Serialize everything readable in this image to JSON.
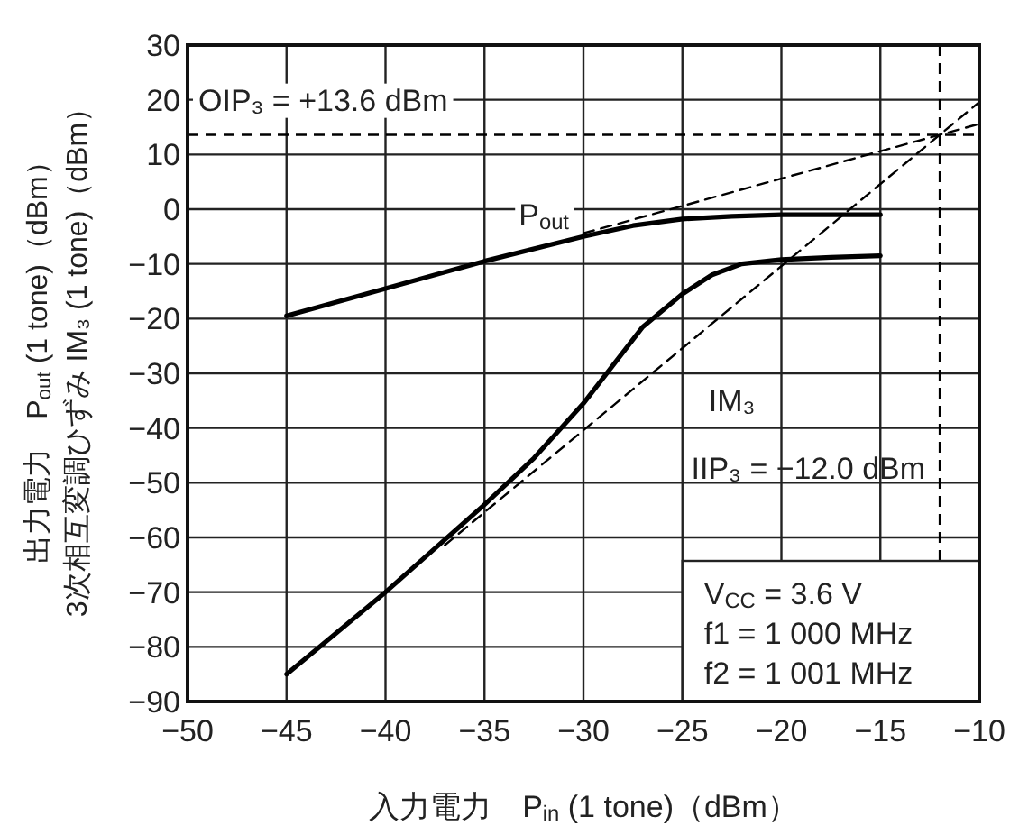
{
  "chart_data": {
    "type": "line",
    "xlabel": "入力電力　P$_{in}$ (1 tone)（dBm）",
    "ylabel": "出力電力　P$_{out}$ (1 tone)（dBm）\n3次相互変調ひずみ IM₃ (1 tone)（dBm）",
    "xlim": [
      -50,
      -10
    ],
    "xticks": [
      -50,
      -45,
      -40,
      -35,
      -30,
      -25,
      -20,
      -15,
      -10
    ],
    "ylim": [
      -90,
      30
    ],
    "yticks": [
      -90,
      -80,
      -70,
      -60,
      -50,
      -40,
      -30,
      -20,
      -10,
      0,
      10,
      20,
      30
    ],
    "grid": true,
    "series": [
      {
        "color": "#000000",
        "line_style": "solid",
        "x": [
          -45,
          -40,
          -35,
          -30,
          -27.5,
          -25,
          -22.5,
          -20,
          -17.5,
          -15
        ],
        "values": [
          -19.5,
          -14.5,
          -9.5,
          -5,
          -3,
          -1.8,
          -1.3,
          -1,
          -1,
          -1
        ]
      },
      {
        "color": "#000000",
        "line_style": "solid",
        "x": [
          -45,
          -42.5,
          -40,
          -37.5,
          -35,
          -32.5,
          -30,
          -28.5,
          -27,
          -25,
          -23.5,
          -22,
          -20,
          -17.5,
          -15
        ],
        "values": [
          -85,
          -77.5,
          -70,
          -62,
          -54,
          -45.5,
          -35.5,
          -28.5,
          -21.5,
          -15.5,
          -12,
          -10,
          -9.2,
          -8.8,
          -8.5
        ]
      },
      {
        "color": "#000000",
        "line_style": "dashed",
        "x": [
          -30,
          -10
        ],
        "values": [
          -4.4,
          15.6
        ]
      },
      {
        "color": "#000000",
        "line_style": "dashed",
        "x": [
          -37,
          -10
        ],
        "values": [
          -61.4,
          19.6
        ]
      }
    ],
    "ref_lines": [
      {
        "axis": "y",
        "value": 13.6,
        "line_style": "dashed",
        "color": "#000000"
      },
      {
        "axis": "x",
        "value": -12,
        "line_style": "dashed",
        "color": "#000000"
      }
    ],
    "annotations": [
      "OIP₃ = +13.6 dBm",
      "IIP₃ = −12.0 dBm",
      {
        "text": "P$_{out}$",
        "x": -32,
        "y": -1
      },
      {
        "text": "IM₃",
        "x": -22.5,
        "y": -35
      },
      "V$_{CC}$ = 3.6 V",
      "f1 = 1 000 MHz",
      "f2 = 1 001 MHz"
    ]
  }
}
